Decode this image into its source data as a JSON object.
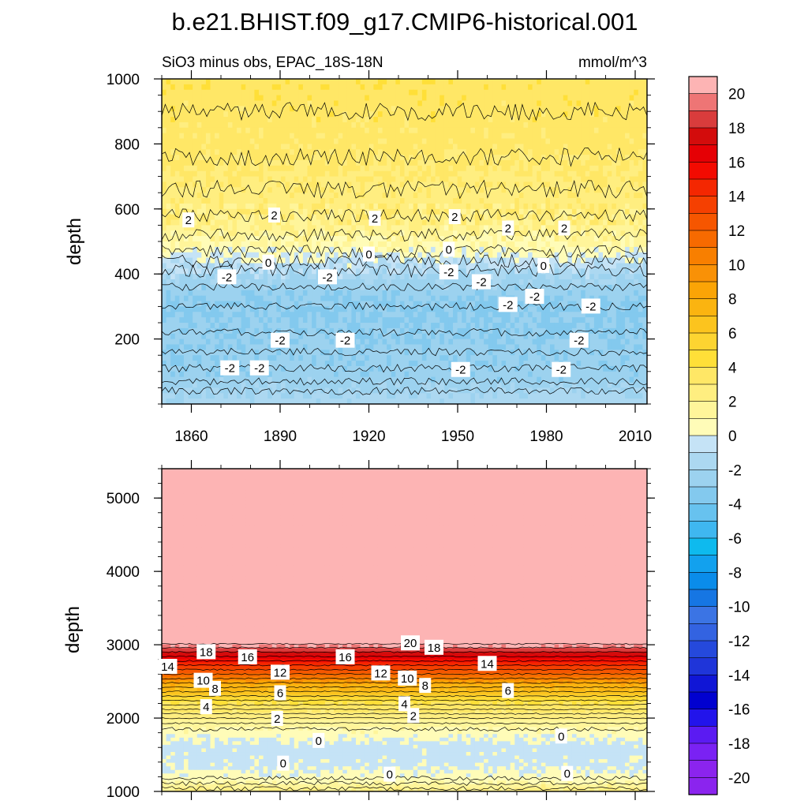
{
  "title": "b.e21.BHIST.f09_g17.CMIP6-historical.001",
  "colors": {
    "pos_levels": [
      "#FFFCB8",
      "#FFF59A",
      "#FFEE80",
      "#FFE766",
      "#FFDF38",
      "#FDD431",
      "#FCC41E",
      "#FBB410",
      "#FBA406",
      "#F99106",
      "#F87F00",
      "#F76A00",
      "#F65600",
      "#F54001",
      "#F42701",
      "#F30B01",
      "#E50005",
      "#D30C0C",
      "#D93C3C",
      "#EE7575",
      "#FDB4B4"
    ],
    "neg_levels": [
      "#C5E3F6",
      "#ACD8F1",
      "#9CD2EF",
      "#83C9EE",
      "#67C2EF",
      "#3FB7F0",
      "#0EBAEE",
      "#12A1EE",
      "#0A8CEA",
      "#1676E3",
      "#3B74E4",
      "#3363E1",
      "#2549DC",
      "#1F35D9",
      "#1016D6",
      "#0101D0",
      "#2214EB",
      "#5B1BF2",
      "#7A22F3",
      "#8B24EE"
    ],
    "line": "#000000"
  },
  "chart_data": [
    {
      "type": "heatmap",
      "panel": "top",
      "left_title": "SiO3 minus obs, EPAC_18S-18N",
      "right_title": "mmol/m^3",
      "xlabel": "",
      "ylabel": "depth",
      "xlim": [
        1850,
        2014
      ],
      "ylim": [
        1000,
        0
      ],
      "x_ticks": [
        1860,
        1890,
        1920,
        1950,
        1980,
        2010
      ],
      "x_tick_labels": [
        "1860",
        "1890",
        "1920",
        "1950",
        "1980",
        "2010"
      ],
      "y_ticks": [
        200,
        400,
        600,
        800,
        1000
      ],
      "y_tick_labels": [
        "200",
        "400",
        "600",
        "800",
        "1000"
      ],
      "profile": [
        {
          "depth": 5,
          "value": -1.5
        },
        {
          "depth": 80,
          "value": -2.6
        },
        {
          "depth": 300,
          "value": -3.2
        },
        {
          "depth": 380,
          "value": -2.2
        },
        {
          "depth": 440,
          "value": -0.5
        },
        {
          "depth": 480,
          "value": 0.8
        },
        {
          "depth": 560,
          "value": 2.3
        },
        {
          "depth": 800,
          "value": 3.4
        },
        {
          "depth": 1000,
          "value": 3.6
        }
      ],
      "contour_labels": [
        {
          "text": "-2",
          "x": 1873,
          "y": 110
        },
        {
          "text": "-2",
          "x": 1883,
          "y": 110
        },
        {
          "text": "-2",
          "x": 1890,
          "y": 195
        },
        {
          "text": "-2",
          "x": 1912,
          "y": 195
        },
        {
          "text": "-2",
          "x": 1951,
          "y": 105
        },
        {
          "text": "-2",
          "x": 1985,
          "y": 105
        },
        {
          "text": "-2",
          "x": 1991,
          "y": 195
        },
        {
          "text": "-2",
          "x": 1967,
          "y": 305
        },
        {
          "text": "-2",
          "x": 1976,
          "y": 330
        },
        {
          "text": "-2",
          "x": 1995,
          "y": 300
        },
        {
          "text": "-2",
          "x": 1872,
          "y": 390
        },
        {
          "text": "-2",
          "x": 1906,
          "y": 390
        },
        {
          "text": "-2",
          "x": 1947,
          "y": 405
        },
        {
          "text": "-2",
          "x": 1958,
          "y": 375
        },
        {
          "text": "0",
          "x": 1886,
          "y": 435
        },
        {
          "text": "0",
          "x": 1920,
          "y": 460
        },
        {
          "text": "0",
          "x": 1947,
          "y": 475
        },
        {
          "text": "0",
          "x": 1979,
          "y": 425
        },
        {
          "text": "2",
          "x": 1859,
          "y": 565
        },
        {
          "text": "2",
          "x": 1888,
          "y": 580
        },
        {
          "text": "2",
          "x": 1922,
          "y": 570
        },
        {
          "text": "2",
          "x": 1949,
          "y": 575
        },
        {
          "text": "2",
          "x": 1967,
          "y": 540
        },
        {
          "text": "2",
          "x": 1986,
          "y": 540
        }
      ]
    },
    {
      "type": "heatmap",
      "panel": "bottom",
      "xlabel": "",
      "ylabel": "depth",
      "xlim": [
        1850,
        2014
      ],
      "ylim": [
        5400,
        1000
      ],
      "y_ticks": [
        1000,
        2000,
        3000,
        4000,
        5000
      ],
      "y_tick_labels": [
        "1000",
        "2000",
        "3000",
        "4000",
        "5000"
      ],
      "profile": [
        {
          "depth": 1000,
          "value": 2.5
        },
        {
          "depth": 1150,
          "value": 0.6
        },
        {
          "depth": 1350,
          "value": -0.3
        },
        {
          "depth": 1600,
          "value": -0.5
        },
        {
          "depth": 1800,
          "value": 0.5
        },
        {
          "depth": 1950,
          "value": 1.8
        },
        {
          "depth": 2200,
          "value": 4.0
        },
        {
          "depth": 2450,
          "value": 8.0
        },
        {
          "depth": 2700,
          "value": 14.0
        },
        {
          "depth": 2900,
          "value": 18.0
        },
        {
          "depth": 3000,
          "value": 20.5
        },
        {
          "depth": 5400,
          "value": 21.0
        }
      ],
      "contour_labels": [
        {
          "text": "0",
          "x": 1927,
          "y": 1230
        },
        {
          "text": "0",
          "x": 1987,
          "y": 1240
        },
        {
          "text": "0",
          "x": 1891,
          "y": 1380
        },
        {
          "text": "0",
          "x": 1903,
          "y": 1690
        },
        {
          "text": "0",
          "x": 1985,
          "y": 1750
        },
        {
          "text": "2",
          "x": 1889,
          "y": 1990
        },
        {
          "text": "2",
          "x": 1935,
          "y": 2030
        },
        {
          "text": "4",
          "x": 1865,
          "y": 2150
        },
        {
          "text": "4",
          "x": 1932,
          "y": 2190
        },
        {
          "text": "6",
          "x": 1890,
          "y": 2340
        },
        {
          "text": "6",
          "x": 1967,
          "y": 2370
        },
        {
          "text": "8",
          "x": 1868,
          "y": 2400
        },
        {
          "text": "8",
          "x": 1939,
          "y": 2440
        },
        {
          "text": "10",
          "x": 1864,
          "y": 2510
        },
        {
          "text": "10",
          "x": 1933,
          "y": 2540
        },
        {
          "text": "12",
          "x": 1890,
          "y": 2620
        },
        {
          "text": "12",
          "x": 1924,
          "y": 2610
        },
        {
          "text": "14",
          "x": 1852,
          "y": 2700
        },
        {
          "text": "14",
          "x": 1960,
          "y": 2740
        },
        {
          "text": "16",
          "x": 1879,
          "y": 2830
        },
        {
          "text": "16",
          "x": 1912,
          "y": 2830
        },
        {
          "text": "18",
          "x": 1865,
          "y": 2900
        },
        {
          "text": "18",
          "x": 1942,
          "y": 2960
        },
        {
          "text": "20",
          "x": 1934,
          "y": 3020
        }
      ]
    }
  ],
  "colorbar": {
    "label_values": [
      20,
      18,
      16,
      14,
      12,
      10,
      8,
      6,
      4,
      2,
      0,
      -2,
      -4,
      -6,
      -8,
      -10,
      -12,
      -14,
      -16,
      -18,
      -20
    ],
    "label_texts": [
      "20",
      "18",
      "16",
      "14",
      "12",
      "10",
      "8",
      "6",
      "4",
      "2",
      "0",
      "-2",
      "-4",
      "-6",
      "-8",
      "-10",
      "-12",
      "-14",
      "-16",
      "-18",
      "-20"
    ]
  }
}
